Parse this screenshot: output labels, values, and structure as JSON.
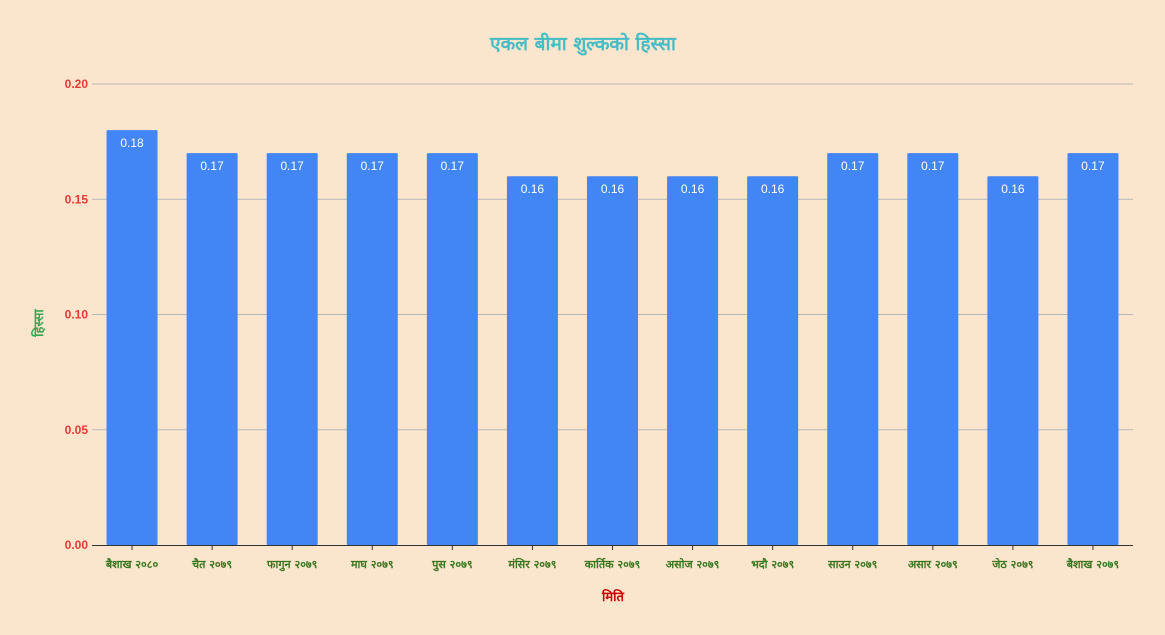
{
  "chart_data": {
    "type": "bar",
    "title": "एकल बीमा शुल्कको हिस्सा",
    "xlabel": "मिति",
    "ylabel": "हिस्सा",
    "categories": [
      "बैशाख २०८०",
      "चैत २०७९",
      "फागुन २०७९",
      "माघ २०७९",
      "पुस २०७९",
      "मंसिर २०७९",
      "कार्तिक २०७९",
      "असोज २०७९",
      "भदौ २०७९",
      "साउन २०७९",
      "असार २०७९",
      "जेठ २०७९",
      "बैशाख २०७९"
    ],
    "values": [
      0.18,
      0.17,
      0.17,
      0.17,
      0.17,
      0.16,
      0.16,
      0.16,
      0.16,
      0.17,
      0.17,
      0.16,
      0.17
    ],
    "data_labels": [
      "0.18",
      "0.17",
      "0.17",
      "0.17",
      "0.17",
      "0.16",
      "0.16",
      "0.16",
      "0.16",
      "0.17",
      "0.17",
      "0.16",
      "0.17"
    ],
    "yticks": [
      "0.00",
      "0.05",
      "0.10",
      "0.15",
      "0.20"
    ],
    "ylim": [
      0,
      0.2
    ],
    "grid": true,
    "legend": "none",
    "colors": {
      "background": "#fce5cd",
      "bar": "#4285f4",
      "title": "#46bdc6",
      "ytick": "#e53935",
      "xtick": "#38761d",
      "xlabel": "#cc0000",
      "ylabel": "#34a853",
      "grid": "#b7b7b7",
      "axis": "#333333",
      "data_label": "#ffffff"
    }
  }
}
